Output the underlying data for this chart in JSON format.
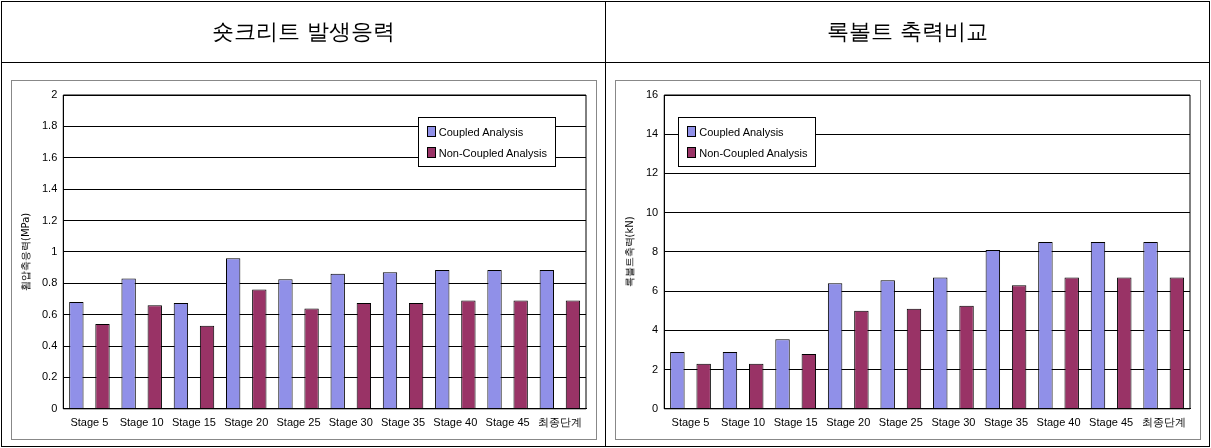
{
  "chart_data": [
    {
      "type": "bar",
      "title": "숏크리트 발생응력",
      "ylabel": "휨압축응력(MPa)",
      "categories": [
        "Stage 5",
        "Stage 10",
        "Stage 15",
        "Stage 20",
        "Stage 25",
        "Stage 30",
        "Stage 35",
        "Stage 40",
        "Stage 45",
        "최종단계"
      ],
      "series": [
        {
          "name": "Coupled Analysis",
          "color": "#9090e8",
          "values": [
            0.68,
            0.83,
            0.675,
            0.96,
            0.825,
            0.86,
            0.87,
            0.885,
            0.885,
            0.885
          ]
        },
        {
          "name": "Non-Coupled Analysis",
          "color": "#993366",
          "values": [
            0.54,
            0.66,
            0.53,
            0.76,
            0.64,
            0.675,
            0.675,
            0.69,
            0.69,
            0.69
          ]
        }
      ],
      "ylim": [
        0,
        2
      ],
      "yticks": [
        0,
        0.2,
        0.4,
        0.6,
        0.8,
        1,
        1.2,
        1.4,
        1.6,
        1.8,
        2
      ],
      "grid": "y",
      "legend": "top right"
    },
    {
      "type": "bar",
      "title": "록볼트 축력비교",
      "ylabel": "록볼트축력(kN)",
      "categories": [
        "Stage 5",
        "Stage 10",
        "Stage 15",
        "Stage 20",
        "Stage 25",
        "Stage 30",
        "Stage 35",
        "Stage 40",
        "Stage 45",
        "최종단계"
      ],
      "series": [
        {
          "name": "Coupled Analysis",
          "color": "#9090e8",
          "values": [
            2.9,
            2.9,
            3.55,
            6.4,
            6.55,
            6.7,
            8.1,
            8.5,
            8.5,
            8.5
          ]
        },
        {
          "name": "Non-Coupled Analysis",
          "color": "#993366",
          "values": [
            2.3,
            2.3,
            2.8,
            5.0,
            5.1,
            5.25,
            6.3,
            6.7,
            6.7,
            6.7
          ]
        }
      ],
      "ylim": [
        0,
        16
      ],
      "yticks": [
        0,
        2,
        4,
        6,
        8,
        10,
        12,
        14,
        16
      ],
      "grid": "y",
      "legend": "top left"
    }
  ]
}
